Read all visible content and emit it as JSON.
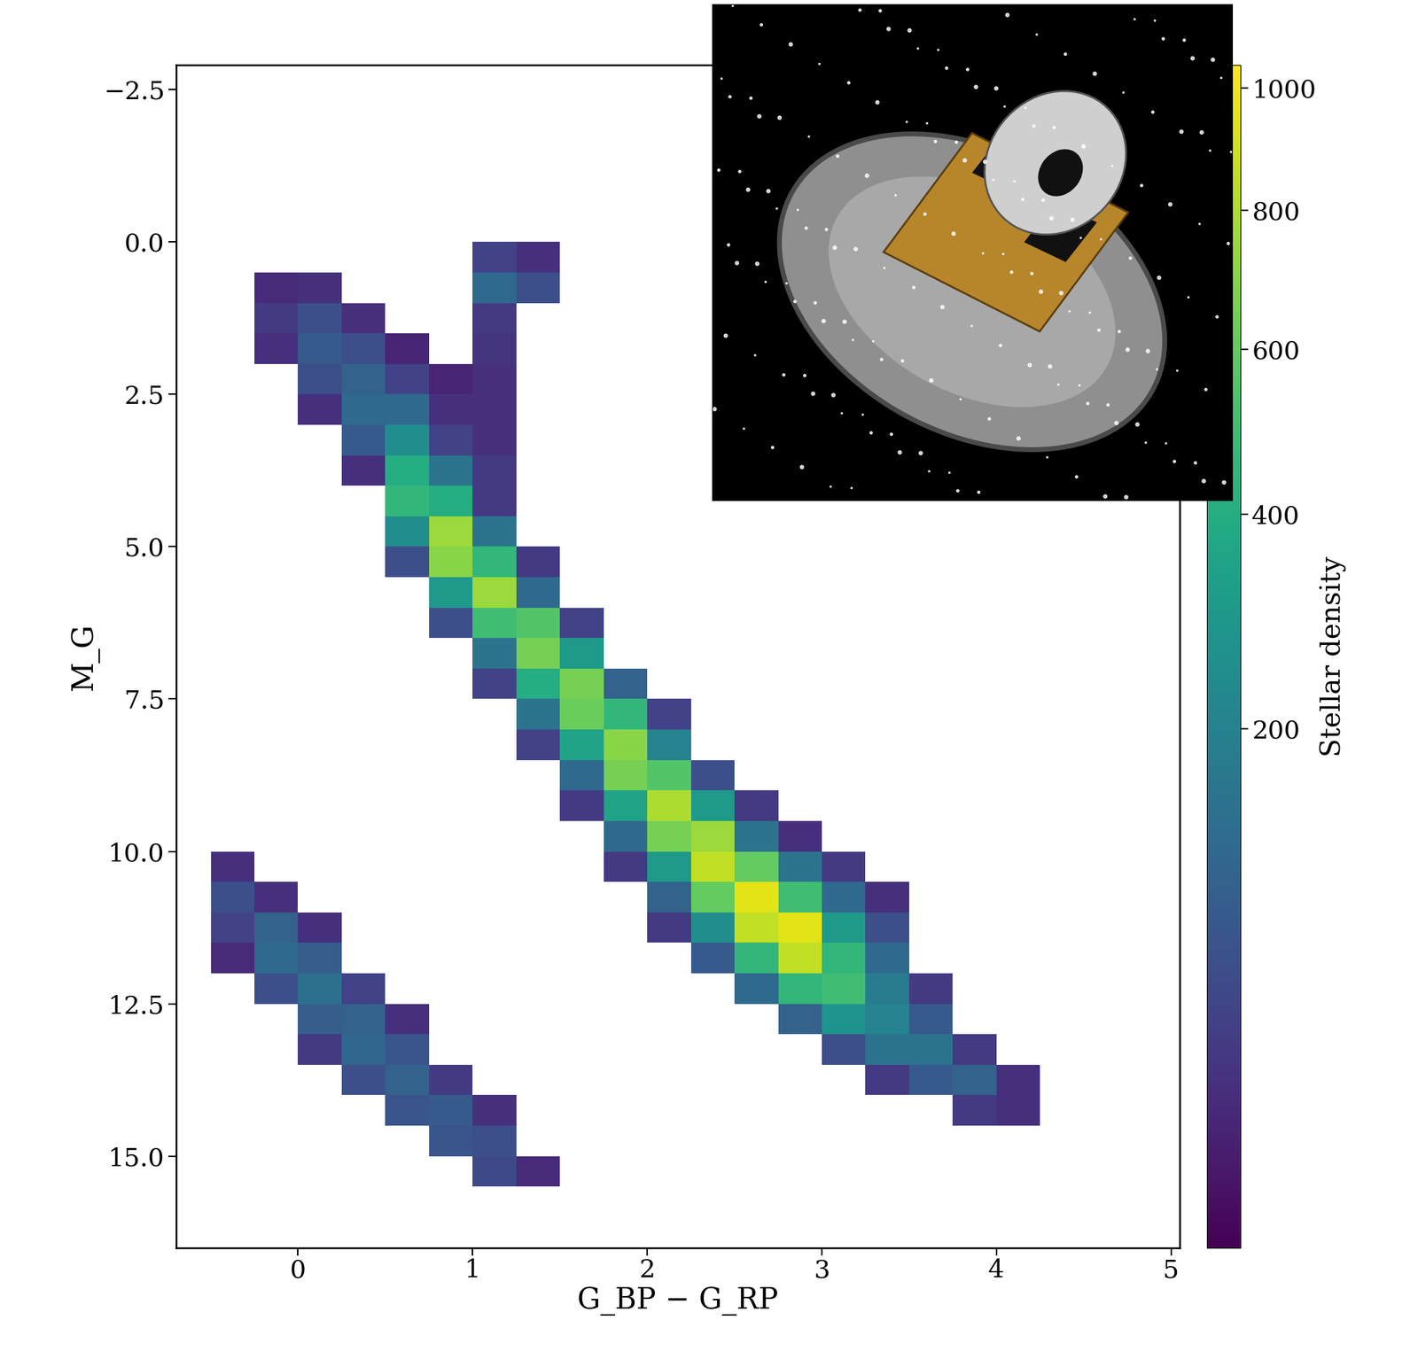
{
  "chart_data": {
    "type": "heatmap",
    "x_label": "G_BP − G_RP",
    "y_label": "M_G",
    "color": "viridis",
    "xlim": [
      -0.7,
      5.05
    ],
    "ylim": [
      16.5,
      -2.9
    ],
    "xticks": [
      0,
      1,
      2,
      3,
      4,
      5
    ],
    "yticks": [
      {
        "value": -2.5,
        "label": "−2.5"
      },
      0.0,
      2.5,
      5.0,
      7.5,
      10.0,
      12.5,
      15.0
    ],
    "x_bins": [
      -0.5,
      -0.25,
      0.0,
      0.25,
      0.5,
      0.75,
      1.0,
      1.25,
      1.5,
      1.75,
      2.0,
      2.25,
      2.5,
      2.75,
      3.0,
      3.25,
      3.5,
      3.75,
      4.0,
      4.25,
      4.5
    ],
    "y_bins": [
      -2.5,
      -2.0,
      -1.5,
      -1.0,
      -0.5,
      0.0,
      0.5,
      1.0,
      1.5,
      2.0,
      2.5,
      3.0,
      3.5,
      4.0,
      4.5,
      5.0,
      5.5,
      6.0,
      6.5,
      7.0,
      7.5,
      8.0,
      8.5,
      9.0,
      9.5,
      10.0,
      10.5,
      11.0,
      11.5,
      12.0,
      12.5,
      13.0,
      13.5,
      14.0,
      14.5,
      15.0,
      15.5,
      16.0
    ],
    "cells": [
      [
        0,
        0,
        0,
        0,
        0,
        0,
        0,
        0,
        0,
        0,
        0,
        0,
        0,
        0,
        0,
        0,
        0,
        0,
        0,
        0
      ],
      [
        0,
        0,
        0,
        0,
        0,
        0,
        0,
        0,
        0,
        0,
        0,
        0,
        0,
        0,
        0,
        0,
        0,
        0,
        0,
        0
      ],
      [
        0,
        0,
        0,
        0,
        0,
        0,
        0,
        0,
        0,
        0,
        0,
        0,
        0,
        0,
        0,
        0,
        0,
        0,
        0,
        0
      ],
      [
        0,
        0,
        0,
        0,
        0,
        0,
        0,
        0,
        0,
        0,
        0,
        0,
        0,
        0,
        0,
        0,
        0,
        0,
        0,
        0
      ],
      [
        0,
        0,
        0,
        0,
        0,
        0,
        0,
        0,
        0,
        0,
        0,
        0,
        0,
        0,
        0,
        0,
        0,
        0,
        0,
        0
      ],
      [
        0,
        0,
        0,
        0,
        0,
        0,
        40,
        20,
        0,
        0,
        0,
        0,
        0,
        0,
        0,
        0,
        0,
        0,
        0,
        0
      ],
      [
        0,
        15,
        20,
        0,
        0,
        0,
        120,
        60,
        0,
        0,
        0,
        0,
        0,
        0,
        0,
        0,
        0,
        0,
        0,
        0
      ],
      [
        0,
        30,
        60,
        20,
        0,
        0,
        30,
        0,
        0,
        0,
        0,
        0,
        0,
        0,
        0,
        0,
        0,
        0,
        0,
        0
      ],
      [
        0,
        20,
        80,
        60,
        10,
        0,
        25,
        0,
        0,
        0,
        0,
        0,
        0,
        0,
        0,
        0,
        0,
        0,
        0,
        0
      ],
      [
        0,
        0,
        60,
        100,
        40,
        10,
        20,
        0,
        0,
        0,
        0,
        0,
        0,
        0,
        0,
        0,
        0,
        0,
        0,
        0
      ],
      [
        0,
        0,
        20,
        120,
        120,
        20,
        20,
        0,
        0,
        0,
        0,
        0,
        0,
        0,
        0,
        0,
        0,
        0,
        0,
        0
      ],
      [
        0,
        0,
        0,
        80,
        250,
        40,
        20,
        0,
        0,
        0,
        0,
        0,
        0,
        0,
        0,
        0,
        0,
        0,
        0,
        0
      ],
      [
        0,
        0,
        0,
        20,
        400,
        150,
        30,
        0,
        0,
        0,
        0,
        0,
        0,
        0,
        0,
        0,
        0,
        0,
        0,
        0
      ],
      [
        0,
        0,
        0,
        0,
        450,
        400,
        30,
        0,
        0,
        0,
        0,
        0,
        0,
        0,
        0,
        0,
        0,
        0,
        0,
        0
      ],
      [
        0,
        0,
        0,
        0,
        250,
        750,
        150,
        0,
        0,
        0,
        0,
        0,
        0,
        0,
        0,
        0,
        0,
        0,
        0,
        0
      ],
      [
        0,
        0,
        0,
        0,
        60,
        700,
        450,
        30,
        0,
        0,
        0,
        0,
        0,
        0,
        0,
        0,
        0,
        0,
        0,
        0
      ],
      [
        0,
        0,
        0,
        0,
        0,
        300,
        750,
        120,
        0,
        0,
        0,
        0,
        0,
        0,
        0,
        0,
        0,
        0,
        0,
        0
      ],
      [
        0,
        0,
        0,
        0,
        0,
        60,
        500,
        550,
        40,
        0,
        0,
        0,
        0,
        0,
        0,
        0,
        0,
        0,
        0,
        0
      ],
      [
        0,
        0,
        0,
        0,
        0,
        0,
        150,
        650,
        300,
        0,
        0,
        0,
        0,
        0,
        0,
        0,
        0,
        0,
        0,
        0
      ],
      [
        0,
        0,
        0,
        0,
        0,
        0,
        40,
        400,
        650,
        100,
        0,
        0,
        0,
        0,
        0,
        0,
        0,
        0,
        0,
        0
      ],
      [
        0,
        0,
        0,
        0,
        0,
        0,
        0,
        150,
        620,
        450,
        40,
        0,
        0,
        0,
        0,
        0,
        0,
        0,
        0,
        0
      ],
      [
        0,
        0,
        0,
        0,
        0,
        0,
        0,
        40,
        350,
        700,
        200,
        0,
        0,
        0,
        0,
        0,
        0,
        0,
        0,
        0
      ],
      [
        0,
        0,
        0,
        0,
        0,
        0,
        0,
        0,
        120,
        650,
        550,
        60,
        0,
        0,
        0,
        0,
        0,
        0,
        0,
        0
      ],
      [
        0,
        0,
        0,
        0,
        0,
        0,
        0,
        0,
        30,
        350,
        800,
        300,
        30,
        0,
        0,
        0,
        0,
        0,
        0,
        0
      ],
      [
        0,
        0,
        0,
        0,
        0,
        0,
        0,
        0,
        0,
        120,
        650,
        750,
        150,
        20,
        0,
        0,
        0,
        0,
        0,
        0
      ],
      [
        20,
        0,
        0,
        0,
        0,
        0,
        0,
        0,
        0,
        30,
        300,
        850,
        600,
        150,
        30,
        0,
        0,
        0,
        0,
        0
      ],
      [
        60,
        20,
        0,
        0,
        0,
        0,
        0,
        0,
        0,
        0,
        100,
        600,
        950,
        500,
        120,
        20,
        0,
        0,
        0,
        0
      ],
      [
        40,
        100,
        20,
        0,
        0,
        0,
        0,
        0,
        0,
        0,
        30,
        250,
        850,
        950,
        300,
        60,
        0,
        0,
        0,
        0
      ],
      [
        15,
        120,
        90,
        0,
        0,
        0,
        0,
        0,
        0,
        0,
        0,
        80,
        450,
        850,
        450,
        120,
        0,
        0,
        0,
        0
      ],
      [
        0,
        60,
        140,
        40,
        0,
        0,
        0,
        0,
        0,
        0,
        0,
        0,
        120,
        450,
        500,
        180,
        30,
        0,
        0,
        0
      ],
      [
        0,
        0,
        90,
        100,
        20,
        0,
        0,
        0,
        0,
        0,
        0,
        0,
        0,
        100,
        280,
        200,
        80,
        0,
        0,
        0
      ],
      [
        0,
        0,
        30,
        110,
        70,
        0,
        0,
        0,
        0,
        0,
        0,
        0,
        0,
        0,
        60,
        150,
        150,
        30,
        0,
        0
      ],
      [
        0,
        0,
        0,
        60,
        100,
        30,
        0,
        0,
        0,
        0,
        0,
        0,
        0,
        0,
        0,
        30,
        80,
        100,
        20,
        0
      ],
      [
        0,
        0,
        0,
        0,
        70,
        80,
        20,
        0,
        0,
        0,
        0,
        0,
        0,
        0,
        0,
        0,
        0,
        30,
        20,
        0
      ],
      [
        0,
        0,
        0,
        0,
        0,
        70,
        60,
        0,
        0,
        0,
        0,
        0,
        0,
        0,
        0,
        0,
        0,
        0,
        0,
        0
      ],
      [
        0,
        0,
        0,
        0,
        0,
        0,
        50,
        15,
        0,
        0,
        0,
        0,
        0,
        0,
        0,
        0,
        0,
        0,
        0,
        0
      ],
      [
        0,
        0,
        0,
        0,
        0,
        0,
        0,
        0,
        0,
        0,
        0,
        0,
        0,
        0,
        0,
        0,
        0,
        0,
        0,
        0
      ]
    ],
    "colorbar": {
      "label": "Stellar density",
      "range": [
        0,
        1040
      ],
      "ticks": [
        200,
        400,
        600,
        800,
        1000
      ]
    }
  }
}
